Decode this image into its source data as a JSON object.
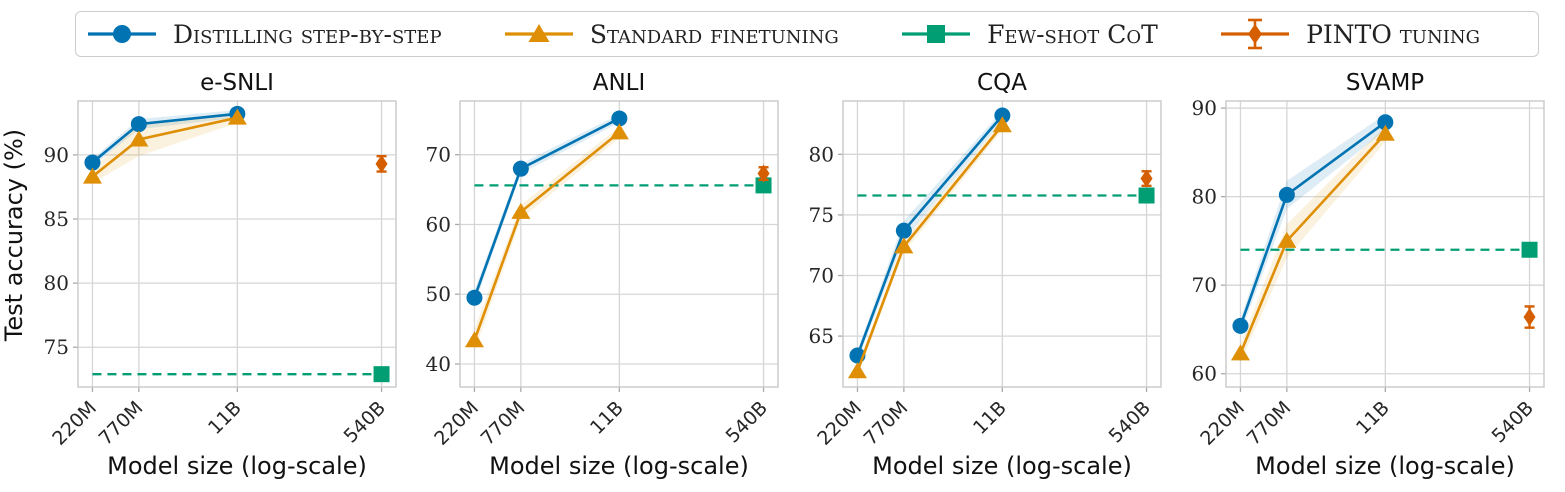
{
  "figure": {
    "y_axis_label": "Test accuracy (%)",
    "x_axis_label": "Model size (log-scale)"
  },
  "legend": {
    "items": [
      {
        "label": "Distilling step-by-step",
        "marker": "circle",
        "color": "#0173b2"
      },
      {
        "label": "Standard finetuning",
        "marker": "triangle",
        "color": "#de8f05"
      },
      {
        "label": "Few-shot CoT",
        "marker": "square",
        "color": "#029e73"
      },
      {
        "label": "PINTO tuning",
        "marker": "diamond",
        "color": "#d55e00"
      }
    ],
    "border_color": "#cccccc"
  },
  "colors": {
    "distilling": "#0173b2",
    "standard": "#de8f05",
    "few_shot_cot": "#029e73",
    "pinto": "#d55e00",
    "grid": "#d6d6d6",
    "axis_border": "#c9c9c9"
  },
  "chart_data": [
    {
      "type": "line",
      "title": "e-SNLI",
      "xlabel": "Model size (log-scale)",
      "ylabel": "Test accuracy (%)",
      "x_scale": "log",
      "x_categories": [
        "220M",
        "770M",
        "11B",
        "540B"
      ],
      "x_sizes_billion": [
        0.22,
        0.77,
        11,
        540
      ],
      "ylim": [
        71.9,
        94.2
      ],
      "yticks": [
        75,
        80,
        85,
        90
      ],
      "grid": true,
      "series": [
        {
          "name": "Distilling step-by-step",
          "color": "#0173b2",
          "marker": "circle",
          "x": [
            "220M",
            "770M",
            "11B"
          ],
          "values": [
            89.4,
            92.4,
            93.2
          ],
          "ci": [
            0.3,
            0.4,
            0.3
          ]
        },
        {
          "name": "Standard finetuning",
          "color": "#de8f05",
          "marker": "triangle",
          "x": [
            "220M",
            "770M",
            "11B"
          ],
          "values": [
            88.3,
            91.2,
            92.9
          ],
          "ci": [
            0.5,
            1.3,
            0.4
          ]
        }
      ],
      "baseline": {
        "name": "Few-shot CoT",
        "color": "#029e73",
        "style": "dashed",
        "value": 72.9,
        "marker": "square",
        "marker_x": "540B"
      },
      "errorbar_point": {
        "name": "PINTO tuning",
        "color": "#d55e00",
        "marker": "diamond",
        "x": "540B",
        "value": 89.3,
        "err": 0.6
      }
    },
    {
      "type": "line",
      "title": "ANLI",
      "xlabel": "Model size (log-scale)",
      "x_scale": "log",
      "x_categories": [
        "220M",
        "770M",
        "11B",
        "540B"
      ],
      "x_sizes_billion": [
        0.22,
        0.77,
        11,
        540
      ],
      "ylim": [
        36.7,
        77.7
      ],
      "yticks": [
        40,
        50,
        60,
        70
      ],
      "grid": true,
      "series": [
        {
          "name": "Distilling step-by-step",
          "color": "#0173b2",
          "marker": "circle",
          "x": [
            "220M",
            "770M",
            "11B"
          ],
          "values": [
            49.5,
            68.0,
            75.2
          ],
          "ci": [
            1.0,
            0.7,
            0.6
          ]
        },
        {
          "name": "Standard finetuning",
          "color": "#de8f05",
          "marker": "triangle",
          "x": [
            "220M",
            "770M",
            "11B"
          ],
          "values": [
            43.4,
            61.8,
            73.2
          ],
          "ci": [
            1.6,
            1.0,
            0.8
          ]
        }
      ],
      "baseline": {
        "name": "Few-shot CoT",
        "color": "#029e73",
        "style": "dashed",
        "value": 65.6,
        "marker": "square",
        "marker_x": "540B"
      },
      "errorbar_point": {
        "name": "PINTO tuning",
        "color": "#d55e00",
        "marker": "diamond",
        "x": "540B",
        "value": 67.3,
        "err": 0.9
      }
    },
    {
      "type": "line",
      "title": "CQA",
      "xlabel": "Model size (log-scale)",
      "x_scale": "log",
      "x_categories": [
        "220M",
        "770M",
        "11B",
        "540B"
      ],
      "x_sizes_billion": [
        0.22,
        0.77,
        11,
        540
      ],
      "ylim": [
        60.8,
        84.4
      ],
      "yticks": [
        65,
        70,
        75,
        80
      ],
      "grid": true,
      "series": [
        {
          "name": "Distilling step-by-step",
          "color": "#0173b2",
          "marker": "circle",
          "x": [
            "220M",
            "770M",
            "11B"
          ],
          "values": [
            63.4,
            73.7,
            83.2
          ],
          "ci": [
            0.4,
            0.8,
            0.4
          ]
        },
        {
          "name": "Standard finetuning",
          "color": "#de8f05",
          "marker": "triangle",
          "x": [
            "220M",
            "770M",
            "11B"
          ],
          "values": [
            62.1,
            72.4,
            82.4
          ],
          "ci": [
            0.4,
            0.5,
            0.4
          ]
        }
      ],
      "baseline": {
        "name": "Few-shot CoT",
        "color": "#029e73",
        "style": "dashed",
        "value": 76.6,
        "marker": "square",
        "marker_x": "540B"
      },
      "errorbar_point": {
        "name": "PINTO tuning",
        "color": "#d55e00",
        "marker": "diamond",
        "x": "540B",
        "value": 78.0,
        "err": 0.6
      }
    },
    {
      "type": "line",
      "title": "SVAMP",
      "xlabel": "Model size (log-scale)",
      "x_scale": "log",
      "x_categories": [
        "220M",
        "770M",
        "11B",
        "540B"
      ],
      "x_sizes_billion": [
        0.22,
        0.77,
        11,
        540
      ],
      "ylim": [
        58.5,
        90.8
      ],
      "yticks": [
        60,
        70,
        80,
        90
      ],
      "grid": true,
      "series": [
        {
          "name": "Distilling step-by-step",
          "color": "#0173b2",
          "marker": "circle",
          "x": [
            "220M",
            "770M",
            "11B"
          ],
          "values": [
            65.4,
            80.2,
            88.4
          ],
          "ci": [
            0.8,
            1.6,
            0.9
          ]
        },
        {
          "name": "Standard finetuning",
          "color": "#de8f05",
          "marker": "triangle",
          "x": [
            "220M",
            "770M",
            "11B"
          ],
          "values": [
            62.3,
            75.0,
            87.1
          ],
          "ci": [
            1.0,
            1.9,
            0.9
          ]
        }
      ],
      "baseline": {
        "name": "Few-shot CoT",
        "color": "#029e73",
        "style": "dashed",
        "value": 74.0,
        "marker": "square",
        "marker_x": "540B"
      },
      "errorbar_point": {
        "name": "PINTO tuning",
        "color": "#d55e00",
        "marker": "diamond",
        "x": "540B",
        "value": 66.4,
        "err": 1.2
      }
    }
  ]
}
